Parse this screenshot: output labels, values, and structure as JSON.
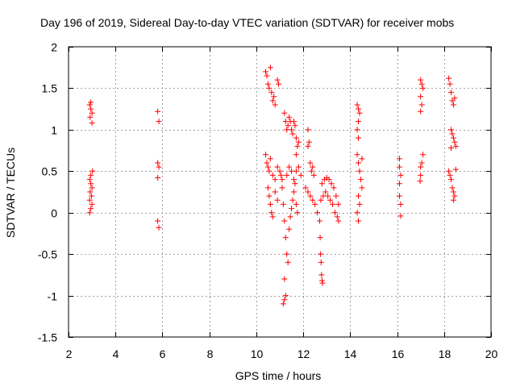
{
  "chart_data": {
    "type": "scatter",
    "title": "Day 196 of 2019, Sidereal Day-to-day VTEC variation (SDTVAR) for receiver mobs",
    "xlabel": "GPS time / hours",
    "ylabel": "SDTVAR / TECUs",
    "xlim": [
      2,
      20
    ],
    "ylim": [
      -1.5,
      2
    ],
    "xticks": [
      "2",
      "4",
      "6",
      "8",
      "10",
      "12",
      "14",
      "16",
      "18",
      "20"
    ],
    "yticks": [
      "-1.5",
      "-1",
      "-0.5",
      "0",
      "0.5",
      "1",
      "1.5",
      "2"
    ],
    "grid": true,
    "marker": "+",
    "series": [
      {
        "name": "SDTVAR",
        "color": "#ff0000",
        "points": [
          [
            2.9,
            1.3
          ],
          [
            2.95,
            1.25
          ],
          [
            3.0,
            1.2
          ],
          [
            2.92,
            1.15
          ],
          [
            3.0,
            1.08
          ],
          [
            2.95,
            1.33
          ],
          [
            2.9,
            0.4
          ],
          [
            2.95,
            0.35
          ],
          [
            3.0,
            0.3
          ],
          [
            2.92,
            0.25
          ],
          [
            2.98,
            0.2
          ],
          [
            2.9,
            0.15
          ],
          [
            3.0,
            0.1
          ],
          [
            2.95,
            0.05
          ],
          [
            2.9,
            0.0
          ],
          [
            3.02,
            0.5
          ],
          [
            2.95,
            0.45
          ],
          [
            5.8,
            1.22
          ],
          [
            5.85,
            1.1
          ],
          [
            5.8,
            0.6
          ],
          [
            5.85,
            0.55
          ],
          [
            5.8,
            0.42
          ],
          [
            5.8,
            -0.1
          ],
          [
            5.85,
            -0.18
          ],
          [
            10.4,
            1.7
          ],
          [
            10.45,
            1.65
          ],
          [
            10.5,
            1.55
          ],
          [
            10.55,
            1.5
          ],
          [
            10.6,
            1.75
          ],
          [
            10.65,
            1.45
          ],
          [
            10.7,
            1.35
          ],
          [
            10.75,
            1.4
          ],
          [
            10.8,
            1.3
          ],
          [
            10.9,
            1.6
          ],
          [
            10.95,
            1.55
          ],
          [
            10.4,
            0.7
          ],
          [
            10.45,
            0.6
          ],
          [
            10.5,
            0.55
          ],
          [
            10.55,
            0.5
          ],
          [
            10.6,
            0.65
          ],
          [
            10.7,
            0.45
          ],
          [
            10.8,
            0.4
          ],
          [
            10.9,
            0.55
          ],
          [
            11.0,
            0.5
          ],
          [
            11.05,
            0.45
          ],
          [
            11.1,
            0.4
          ],
          [
            10.5,
            0.3
          ],
          [
            10.55,
            0.2
          ],
          [
            10.6,
            0.1
          ],
          [
            10.65,
            0.0
          ],
          [
            10.7,
            -0.05
          ],
          [
            10.8,
            0.25
          ],
          [
            10.9,
            0.15
          ],
          [
            11.2,
            1.2
          ],
          [
            11.25,
            1.1
          ],
          [
            11.3,
            1.0
          ],
          [
            11.35,
            1.05
          ],
          [
            11.4,
            1.15
          ],
          [
            11.45,
            1.1
          ],
          [
            11.5,
            1.0
          ],
          [
            11.55,
            0.95
          ],
          [
            11.6,
            1.1
          ],
          [
            11.65,
            1.05
          ],
          [
            11.7,
            0.9
          ],
          [
            11.75,
            0.8
          ],
          [
            11.8,
            0.85
          ],
          [
            11.7,
            0.7
          ],
          [
            11.1,
            0.3
          ],
          [
            11.15,
            0.1
          ],
          [
            11.2,
            -0.1
          ],
          [
            11.25,
            -0.3
          ],
          [
            11.3,
            -0.5
          ],
          [
            11.35,
            -0.6
          ],
          [
            11.2,
            -0.8
          ],
          [
            11.25,
            -1.0
          ],
          [
            11.15,
            -1.1
          ],
          [
            11.2,
            -1.05
          ],
          [
            11.4,
            -0.2
          ],
          [
            11.45,
            -0.05
          ],
          [
            11.5,
            0.05
          ],
          [
            11.55,
            0.15
          ],
          [
            11.6,
            0.25
          ],
          [
            11.65,
            0.35
          ],
          [
            11.7,
            0.1
          ],
          [
            11.75,
            0.0
          ],
          [
            11.3,
            0.45
          ],
          [
            11.4,
            0.55
          ],
          [
            11.5,
            0.5
          ],
          [
            11.6,
            0.4
          ],
          [
            11.7,
            0.5
          ],
          [
            11.8,
            0.55
          ],
          [
            11.9,
            0.45
          ],
          [
            12.2,
            1.0
          ],
          [
            12.25,
            0.85
          ],
          [
            12.2,
            0.8
          ],
          [
            12.3,
            0.6
          ],
          [
            12.35,
            0.5
          ],
          [
            12.4,
            0.55
          ],
          [
            12.45,
            0.45
          ],
          [
            12.1,
            0.3
          ],
          [
            12.2,
            0.25
          ],
          [
            12.3,
            0.2
          ],
          [
            12.4,
            0.15
          ],
          [
            12.5,
            0.1
          ],
          [
            12.6,
            0.0
          ],
          [
            12.7,
            -0.1
          ],
          [
            12.72,
            -0.3
          ],
          [
            12.74,
            -0.5
          ],
          [
            12.76,
            -0.6
          ],
          [
            12.78,
            -0.75
          ],
          [
            12.8,
            -0.82
          ],
          [
            12.82,
            -0.85
          ],
          [
            12.8,
            0.35
          ],
          [
            12.9,
            0.4
          ],
          [
            13.0,
            0.42
          ],
          [
            13.1,
            0.4
          ],
          [
            13.2,
            0.35
          ],
          [
            13.3,
            0.3
          ],
          [
            13.4,
            0.2
          ],
          [
            13.5,
            0.1
          ],
          [
            13.5,
            -0.1
          ],
          [
            12.75,
            0.15
          ],
          [
            12.85,
            0.2
          ],
          [
            12.95,
            0.25
          ],
          [
            13.05,
            0.2
          ],
          [
            13.15,
            0.15
          ],
          [
            13.25,
            0.1
          ],
          [
            13.35,
            0.0
          ],
          [
            13.45,
            -0.05
          ],
          [
            14.3,
            1.3
          ],
          [
            14.35,
            1.25
          ],
          [
            14.4,
            1.2
          ],
          [
            14.35,
            1.1
          ],
          [
            14.3,
            1.0
          ],
          [
            14.35,
            0.9
          ],
          [
            14.3,
            0.7
          ],
          [
            14.35,
            0.6
          ],
          [
            14.4,
            0.5
          ],
          [
            14.45,
            0.4
          ],
          [
            14.5,
            0.3
          ],
          [
            14.35,
            0.2
          ],
          [
            14.4,
            0.1
          ],
          [
            14.3,
            0.0
          ],
          [
            14.35,
            -0.1
          ],
          [
            14.5,
            0.65
          ],
          [
            16.1,
            0.65
          ],
          [
            16.1,
            0.55
          ],
          [
            16.15,
            0.45
          ],
          [
            16.1,
            0.35
          ],
          [
            16.1,
            0.2
          ],
          [
            16.15,
            0.1
          ],
          [
            16.15,
            -0.04
          ],
          [
            17.0,
            1.6
          ],
          [
            17.05,
            1.55
          ],
          [
            17.1,
            1.5
          ],
          [
            17.0,
            1.4
          ],
          [
            17.05,
            1.3
          ],
          [
            17.0,
            1.22
          ],
          [
            17.1,
            0.7
          ],
          [
            17.05,
            0.6
          ],
          [
            17.0,
            0.55
          ],
          [
            17.0,
            0.45
          ],
          [
            16.98,
            0.38
          ],
          [
            18.2,
            1.62
          ],
          [
            18.25,
            1.55
          ],
          [
            18.3,
            1.45
          ],
          [
            18.35,
            1.35
          ],
          [
            18.4,
            1.3
          ],
          [
            18.45,
            1.38
          ],
          [
            18.3,
            1.0
          ],
          [
            18.35,
            0.95
          ],
          [
            18.4,
            0.9
          ],
          [
            18.45,
            0.85
          ],
          [
            18.5,
            0.8
          ],
          [
            18.3,
            0.78
          ],
          [
            18.2,
            0.5
          ],
          [
            18.25,
            0.45
          ],
          [
            18.3,
            0.4
          ],
          [
            18.35,
            0.3
          ],
          [
            18.4,
            0.25
          ],
          [
            18.45,
            0.2
          ],
          [
            18.4,
            0.15
          ],
          [
            18.5,
            0.52
          ]
        ]
      }
    ]
  }
}
